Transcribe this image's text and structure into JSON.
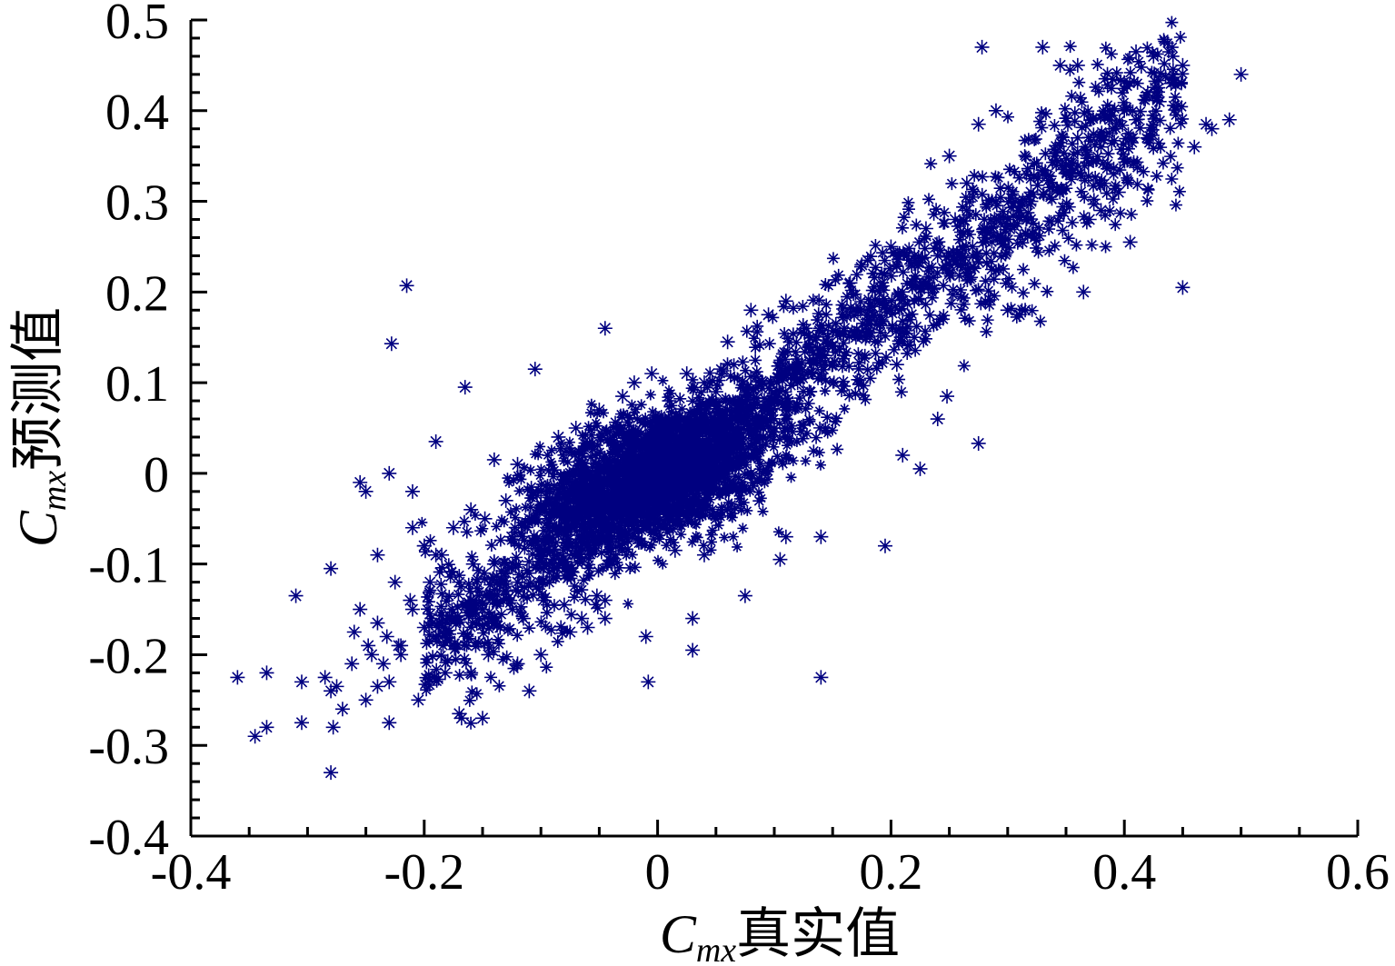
{
  "chart_data": {
    "type": "scatter",
    "title": "",
    "xlabel": {
      "symbol": "C",
      "subscript": "mx",
      "text": "真实值"
    },
    "ylabel": {
      "symbol": "C",
      "subscript": "mx",
      "text": "预测值"
    },
    "xlim": [
      -0.4,
      0.6
    ],
    "ylim": [
      -0.4,
      0.5
    ],
    "xticks": [
      -0.4,
      -0.2,
      0,
      0.2,
      0.4,
      0.6
    ],
    "xtick_labels": [
      "-0.4",
      "-0.2",
      "0",
      "0.2",
      "0.4",
      "0.6"
    ],
    "yticks": [
      -0.4,
      -0.3,
      -0.2,
      -0.1,
      0,
      0.1,
      0.2,
      0.3,
      0.4,
      0.5
    ],
    "ytick_labels": [
      "-0.4",
      "-0.3",
      "-0.2",
      "-0.1",
      "0",
      "0.1",
      "0.2",
      "0.3",
      "0.4",
      "0.5"
    ],
    "marker": "asterisk",
    "color": "#000080",
    "grid": false,
    "series": [
      {
        "points": [
          [
            -0.36,
            -0.225
          ],
          [
            -0.345,
            -0.29
          ],
          [
            -0.335,
            -0.22
          ],
          [
            -0.335,
            -0.28
          ],
          [
            -0.31,
            -0.135
          ],
          [
            -0.305,
            -0.23
          ],
          [
            -0.305,
            -0.275
          ],
          [
            -0.285,
            -0.225
          ],
          [
            -0.28,
            -0.33
          ],
          [
            -0.28,
            -0.105
          ],
          [
            -0.28,
            -0.24
          ],
          [
            -0.278,
            -0.28
          ],
          [
            -0.275,
            -0.235
          ],
          [
            -0.27,
            -0.26
          ],
          [
            -0.262,
            -0.21
          ],
          [
            -0.26,
            -0.175
          ],
          [
            -0.255,
            -0.15
          ],
          [
            -0.25,
            -0.25
          ],
          [
            -0.248,
            -0.19
          ],
          [
            -0.245,
            -0.2
          ],
          [
            -0.24,
            -0.165
          ],
          [
            -0.24,
            -0.235
          ],
          [
            -0.235,
            -0.21
          ],
          [
            -0.232,
            -0.18
          ],
          [
            -0.23,
            -0.275
          ],
          [
            -0.23,
            -0.23
          ],
          [
            -0.228,
            0.143
          ],
          [
            -0.222,
            -0.19
          ],
          [
            -0.22,
            -0.2
          ],
          [
            -0.215,
            0.207
          ],
          [
            -0.212,
            -0.14
          ],
          [
            -0.205,
            -0.25
          ],
          [
            -0.2,
            -0.08
          ],
          [
            -0.195,
            -0.155
          ],
          [
            -0.19,
            0.035
          ],
          [
            -0.188,
            -0.17
          ],
          [
            -0.182,
            -0.22
          ],
          [
            -0.178,
            -0.185
          ],
          [
            -0.17,
            -0.265
          ],
          [
            -0.168,
            -0.27
          ],
          [
            -0.165,
            0.095
          ],
          [
            -0.16,
            -0.22
          ],
          [
            -0.158,
            -0.1
          ],
          [
            -0.155,
            -0.12
          ],
          [
            -0.15,
            -0.27
          ],
          [
            -0.148,
            -0.05
          ],
          [
            -0.145,
            -0.2
          ],
          [
            -0.14,
            -0.14
          ],
          [
            -0.135,
            -0.17
          ],
          [
            -0.13,
            -0.11
          ],
          [
            -0.125,
            -0.07
          ],
          [
            -0.12,
            -0.21
          ],
          [
            -0.115,
            -0.16
          ],
          [
            -0.11,
            -0.24
          ],
          [
            -0.105,
            0.115
          ],
          [
            -0.1,
            -0.2
          ],
          [
            -0.098,
            -0.14
          ],
          [
            -0.08,
            -0.145
          ],
          [
            -0.075,
            -0.175
          ],
          [
            -0.065,
            -0.16
          ],
          [
            -0.06,
            -0.17
          ],
          [
            -0.052,
            -0.135
          ],
          [
            -0.045,
            0.16
          ],
          [
            -0.045,
            -0.16
          ],
          [
            -0.045,
            -0.14
          ],
          [
            -0.04,
            -0.075
          ],
          [
            -0.01,
            -0.18
          ],
          [
            -0.008,
            -0.23
          ],
          [
            0.015,
            -0.085
          ],
          [
            0.03,
            -0.16
          ],
          [
            0.03,
            -0.195
          ],
          [
            0.04,
            -0.09
          ],
          [
            0.06,
            0.145
          ],
          [
            0.075,
            -0.135
          ],
          [
            0.08,
            0.18
          ],
          [
            0.095,
            0.175
          ],
          [
            0.105,
            -0.095
          ],
          [
            0.11,
            0.19
          ],
          [
            0.11,
            -0.07
          ],
          [
            0.14,
            -0.07
          ],
          [
            0.14,
            -0.225
          ],
          [
            0.165,
            0.21
          ],
          [
            0.175,
            0.23
          ],
          [
            0.18,
            0.235
          ],
          [
            0.19,
            0.19
          ],
          [
            0.195,
            -0.08
          ],
          [
            0.205,
            0.12
          ],
          [
            0.21,
            0.02
          ],
          [
            0.22,
            0.15
          ],
          [
            0.225,
            0.005
          ],
          [
            0.24,
            0.06
          ],
          [
            0.248,
            0.085
          ],
          [
            0.25,
            0.35
          ],
          [
            0.265,
            0.32
          ],
          [
            0.265,
            0.29
          ],
          [
            0.275,
            0.385
          ],
          [
            0.275,
            0.033
          ],
          [
            0.278,
            0.47
          ],
          [
            0.28,
            0.27
          ],
          [
            0.29,
            0.4
          ],
          [
            0.3,
            0.18
          ],
          [
            0.31,
            0.175
          ],
          [
            0.315,
            0.18
          ],
          [
            0.32,
            0.3
          ],
          [
            0.33,
            0.47
          ],
          [
            0.345,
            0.45
          ],
          [
            0.36,
            0.45
          ],
          [
            0.365,
            0.2
          ],
          [
            0.37,
            0.28
          ],
          [
            0.38,
            0.29
          ],
          [
            0.395,
            0.31
          ],
          [
            0.405,
            0.255
          ],
          [
            0.41,
            0.465
          ],
          [
            0.425,
            0.46
          ],
          [
            0.45,
            0.205
          ],
          [
            0.46,
            0.36
          ],
          [
            0.47,
            0.385
          ],
          [
            0.475,
            0.38
          ],
          [
            0.49,
            0.39
          ],
          [
            0.5,
            0.44
          ],
          [
            0.22,
            0.24
          ],
          [
            0.2,
            0.25
          ],
          [
            0.23,
            0.27
          ],
          [
            0.255,
            0.28
          ],
          [
            0.19,
            0.2
          ],
          [
            0.16,
            0.16
          ],
          [
            0.15,
            0.14
          ],
          [
            0.13,
            0.09
          ],
          [
            0.12,
            0.12
          ],
          [
            0.1,
            0.08
          ],
          [
            0.085,
            0.06
          ],
          [
            0.09,
            0.1
          ],
          [
            0.07,
            0.04
          ],
          [
            0.06,
            0.02
          ],
          [
            0.05,
            0.09
          ],
          [
            0.04,
            0.1
          ],
          [
            0.025,
            0.11
          ],
          [
            0.01,
            0.08
          ],
          [
            -0.005,
            0.11
          ],
          [
            -0.02,
            0.1
          ],
          [
            -0.03,
            0.085
          ],
          [
            -0.05,
            0.07
          ],
          [
            -0.07,
            0.05
          ],
          [
            -0.085,
            0.04
          ],
          [
            -0.1,
            -0.02
          ],
          [
            -0.11,
            -0.05
          ],
          [
            -0.12,
            0.01
          ],
          [
            -0.13,
            -0.03
          ],
          [
            -0.14,
            0.015
          ],
          [
            -0.16,
            -0.04
          ],
          [
            -0.175,
            -0.06
          ],
          [
            -0.185,
            -0.09
          ],
          [
            -0.195,
            -0.12
          ],
          [
            -0.21,
            -0.06
          ],
          [
            -0.225,
            -0.12
          ],
          [
            -0.24,
            -0.09
          ],
          [
            -0.255,
            -0.01
          ],
          [
            -0.25,
            -0.02
          ],
          [
            -0.23,
            0.0
          ],
          [
            -0.21,
            -0.02
          ],
          [
            -0.2,
            -0.08
          ],
          [
            -0.19,
            -0.09
          ],
          [
            0.34,
            0.35
          ],
          [
            0.35,
            0.34
          ],
          [
            0.36,
            0.37
          ],
          [
            0.38,
            0.36
          ],
          [
            0.39,
            0.38
          ],
          [
            0.4,
            0.4
          ],
          [
            0.41,
            0.39
          ],
          [
            0.42,
            0.42
          ],
          [
            0.43,
            0.41
          ],
          [
            0.44,
            0.43
          ],
          [
            0.45,
            0.45
          ],
          [
            0.33,
            0.33
          ],
          [
            0.32,
            0.31
          ],
          [
            0.31,
            0.29
          ],
          [
            0.3,
            0.28
          ],
          [
            0.29,
            0.3
          ],
          [
            0.28,
            0.26
          ],
          [
            0.27,
            0.25
          ],
          [
            0.26,
            0.23
          ],
          [
            0.25,
            0.22
          ],
          [
            0.24,
            0.24
          ],
          [
            0.23,
            0.21
          ],
          [
            0.22,
            0.19
          ],
          [
            0.21,
            0.2
          ],
          [
            0.2,
            0.18
          ],
          [
            0.18,
            0.17
          ],
          [
            0.17,
            0.15
          ],
          [
            0.16,
            0.13
          ],
          [
            0.15,
            0.12
          ],
          [
            0.14,
            0.11
          ],
          [
            0.13,
            0.14
          ],
          [
            0.12,
            0.1
          ],
          [
            0.11,
            0.07
          ],
          [
            0.1,
            0.05
          ],
          [
            0.09,
            0.03
          ],
          [
            0.08,
            0.0
          ],
          [
            0.07,
            -0.02
          ],
          [
            0.06,
            -0.04
          ],
          [
            0.05,
            -0.05
          ],
          [
            0.04,
            -0.03
          ],
          [
            0.03,
            -0.01
          ],
          [
            0.02,
            0.0
          ],
          [
            0.01,
            -0.02
          ],
          [
            0.0,
            -0.01
          ],
          [
            -0.01,
            -0.03
          ],
          [
            -0.02,
            -0.04
          ],
          [
            -0.03,
            -0.05
          ],
          [
            -0.04,
            -0.06
          ],
          [
            -0.05,
            -0.04
          ],
          [
            -0.06,
            -0.07
          ],
          [
            -0.07,
            -0.08
          ],
          [
            -0.08,
            -0.06
          ],
          [
            -0.09,
            -0.1
          ],
          [
            -0.1,
            -0.09
          ],
          [
            -0.11,
            -0.11
          ],
          [
            -0.12,
            -0.12
          ],
          [
            -0.13,
            -0.13
          ],
          [
            -0.14,
            -0.1
          ],
          [
            -0.15,
            -0.15
          ],
          [
            -0.16,
            -0.14
          ],
          [
            -0.17,
            -0.12
          ],
          [
            -0.18,
            -0.16
          ],
          [
            -0.19,
            -0.18
          ],
          [
            -0.2,
            -0.17
          ],
          [
            -0.21,
            -0.15
          ],
          [
            -0.22,
            -0.19
          ]
        ]
      }
    ],
    "cluster": {
      "description_note": "",
      "center": [
        0.0,
        0.0
      ],
      "spread_x": 0.05,
      "spread_y": 0.035,
      "count": 2200
    },
    "band": {
      "slope": 0.95,
      "intercept": -0.005,
      "x_range": [
        -0.2,
        0.45
      ],
      "noise": 0.04,
      "count": 1600
    }
  }
}
